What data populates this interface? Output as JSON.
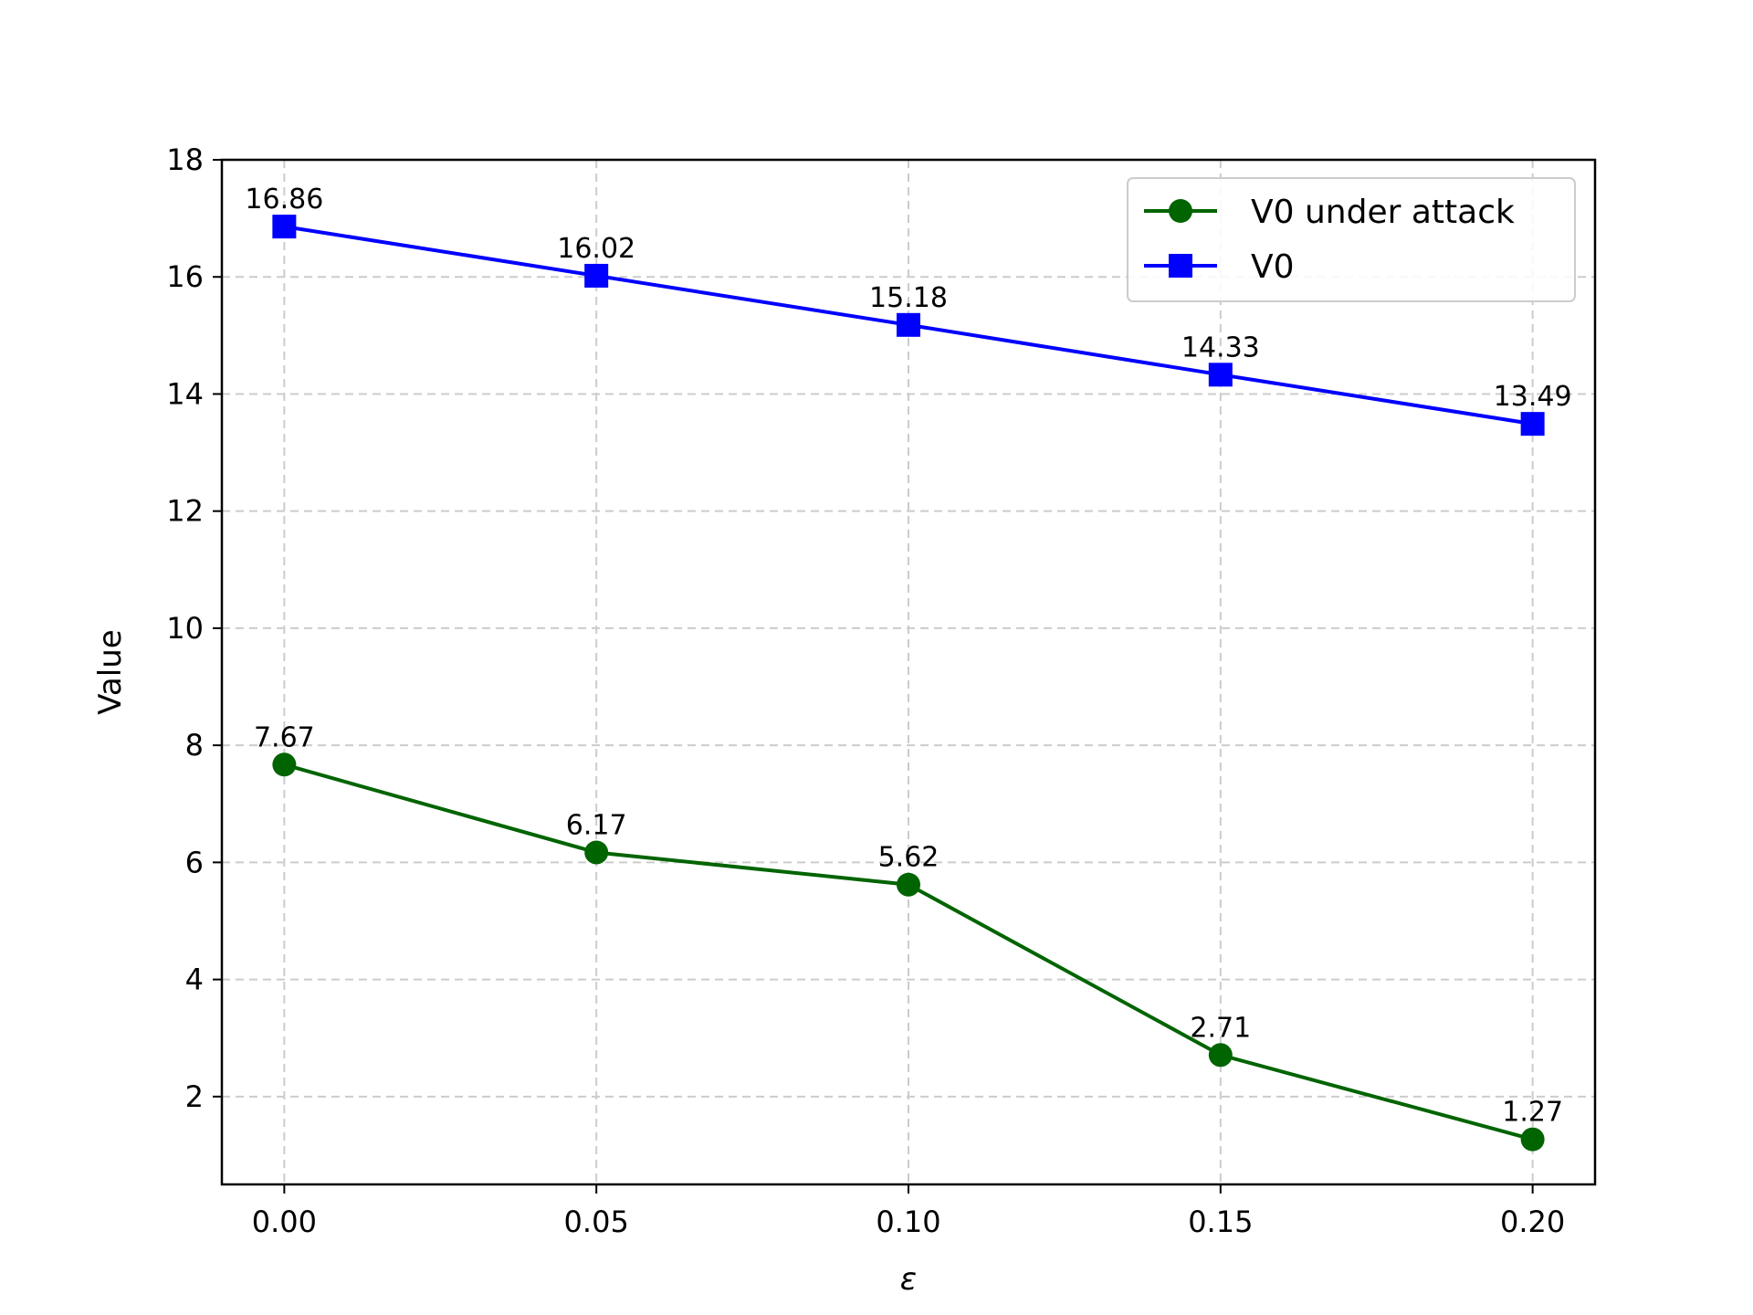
{
  "chart_data": {
    "type": "line",
    "title": "",
    "xlabel": "ε",
    "ylabel": "Value",
    "x": [
      0.0,
      0.05,
      0.1,
      0.15,
      0.2
    ],
    "x_tick_labels": [
      "0.00",
      "0.05",
      "0.10",
      "0.15",
      "0.20"
    ],
    "y_ticks": [
      2,
      4,
      6,
      8,
      10,
      12,
      14,
      16,
      18
    ],
    "xlim": [
      -0.01,
      0.21
    ],
    "ylim": [
      0.5,
      18
    ],
    "grid": true,
    "legend_position": "top-right",
    "series": [
      {
        "name": "V0 under attack",
        "color": "#006400",
        "marker": "circle",
        "values": [
          7.67,
          6.17,
          5.62,
          2.71,
          1.27
        ],
        "labels": [
          "7.67",
          "6.17",
          "5.62",
          "2.71",
          "1.27"
        ]
      },
      {
        "name": "V0",
        "color": "#0000ff",
        "marker": "square",
        "values": [
          16.86,
          16.02,
          15.18,
          14.33,
          13.49
        ],
        "labels": [
          "16.86",
          "16.02",
          "15.18",
          "14.33",
          "13.49"
        ]
      }
    ]
  }
}
